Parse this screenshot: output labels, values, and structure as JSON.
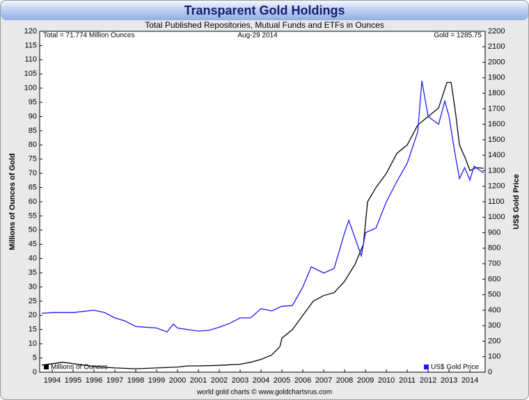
{
  "chart_data": {
    "type": "line",
    "title": "Transparent Gold Holdings",
    "subtitle": "Total Published Repositories, Mutual Funds and ETFs in Ounces",
    "total_label": "Total = 71.774 Million Ounces",
    "date_label": "Aug-29  2014",
    "gold_label": "Gold = 1285.75",
    "y_label": "Millions of Ounces of Gold",
    "y2_label": "US$ Gold Price",
    "footer": "world gold charts © www.goldchartsrus.com",
    "xlim": [
      1993.4,
      2014.73
    ],
    "xticks": [
      1994,
      1995,
      1996,
      1997,
      1998,
      1999,
      2000,
      2001,
      2002,
      2003,
      2004,
      2005,
      2006,
      2007,
      2008,
      2009,
      2010,
      2011,
      2012,
      2013,
      2014
    ],
    "ylim": [
      0,
      120
    ],
    "yticks": [
      0,
      5,
      10,
      15,
      20,
      25,
      30,
      35,
      40,
      45,
      50,
      55,
      60,
      65,
      70,
      75,
      80,
      85,
      90,
      95,
      100,
      105,
      110,
      115,
      120
    ],
    "y2lim": [
      0,
      2200
    ],
    "y2ticks": [
      0,
      100,
      200,
      300,
      400,
      500,
      600,
      700,
      800,
      900,
      1000,
      1100,
      1200,
      1300,
      1400,
      1500,
      1600,
      1700,
      1800,
      1900,
      2000,
      2100,
      2200
    ],
    "grid": false,
    "series": [
      {
        "name": "Millions of Ounces",
        "color": "#000000",
        "legend": "bottom-left",
        "x": [
          1993.5,
          1994,
          1994.5,
          1995,
          1995.5,
          1996,
          1997,
          1998,
          1999,
          2000,
          2000.5,
          2001,
          2002,
          2003,
          2003.5,
          2004,
          2004.5,
          2004.9,
          2005,
          2005.5,
          2006,
          2006.5,
          2007,
          2007.5,
          2008,
          2008.5,
          2008.9,
          2009.1,
          2009.5,
          2010,
          2010.5,
          2011,
          2011.5,
          2012,
          2012.5,
          2012.9,
          2013.1,
          2013.3,
          2013.5,
          2013.8,
          2014,
          2014.3,
          2014.66
        ],
        "values": [
          2.5,
          3,
          3.5,
          3,
          2.5,
          2,
          1.5,
          1.2,
          1.5,
          1.8,
          2.2,
          2.2,
          2.4,
          2.8,
          3.5,
          4.5,
          6,
          9,
          12,
          15,
          20,
          25,
          27,
          28,
          32,
          38,
          45,
          60,
          65,
          70,
          77,
          80,
          87,
          90,
          93,
          102,
          102,
          92,
          80,
          75,
          71,
          72,
          71.774
        ]
      },
      {
        "name": "US$ Gold Price",
        "color": "#1a1aff",
        "axis": "y2",
        "legend": "bottom-right",
        "x": [
          1993.5,
          1994,
          1995,
          1996,
          1996.5,
          1997,
          1997.5,
          1998,
          1999,
          1999.5,
          1999.8,
          2000,
          2001,
          2001.5,
          2002,
          2002.5,
          2003,
          2003.5,
          2004,
          2004.5,
          2005,
          2005.5,
          2006,
          2006.4,
          2007,
          2007.5,
          2008,
          2008.2,
          2008.8,
          2009,
          2009.5,
          2010,
          2010.5,
          2011,
          2011.5,
          2011.7,
          2012,
          2012.5,
          2012.8,
          2013,
          2013.3,
          2013.5,
          2013.75,
          2014,
          2014.2,
          2014.5,
          2014.66
        ],
        "values": [
          380,
          385,
          385,
          400,
          385,
          350,
          330,
          295,
          285,
          260,
          310,
          285,
          265,
          270,
          290,
          315,
          350,
          350,
          410,
          395,
          425,
          430,
          550,
          680,
          640,
          670,
          900,
          980,
          750,
          900,
          930,
          1100,
          1230,
          1350,
          1550,
          1880,
          1650,
          1600,
          1750,
          1650,
          1400,
          1250,
          1320,
          1240,
          1330,
          1300,
          1285.75
        ]
      }
    ]
  }
}
